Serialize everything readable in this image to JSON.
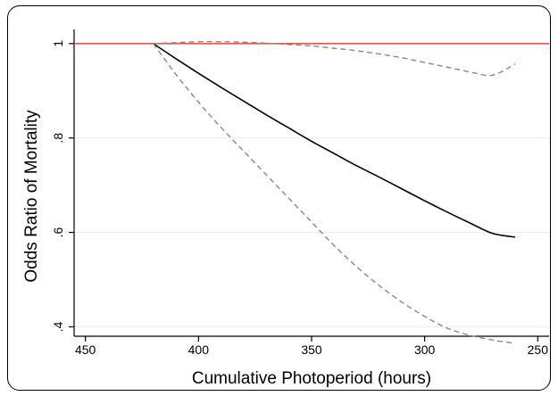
{
  "chart_data": {
    "type": "line",
    "title": "",
    "xlabel": "Cumulative Photoperiod (hours)",
    "ylabel": "Odds Ratio of Mortality",
    "xlim": [
      455,
      245
    ],
    "ylim": [
      0.38,
      1.03
    ],
    "x_reversed": true,
    "x_ticks": [
      450,
      400,
      350,
      300,
      250
    ],
    "x_tick_labels": [
      "450",
      "400",
      "350",
      "300",
      "250"
    ],
    "y_ticks": [
      0.4,
      0.6,
      0.8,
      1.0
    ],
    "y_tick_labels": [
      ".4",
      ".6",
      ".8",
      "1"
    ],
    "grid": true,
    "legend": "none",
    "reference_line": {
      "y": 1.0,
      "color": "#e8443a"
    },
    "series": [
      {
        "role": "estimate",
        "style": "solid",
        "color": "#000000",
        "x": [
          420,
          410,
          400,
          390,
          380,
          370,
          360,
          350,
          340,
          330,
          320,
          310,
          300,
          290,
          280,
          270,
          260
        ],
        "y": [
          1.0,
          0.968,
          0.937,
          0.907,
          0.878,
          0.849,
          0.821,
          0.793,
          0.767,
          0.741,
          0.717,
          0.692,
          0.667,
          0.643,
          0.62,
          0.598,
          0.59
        ]
      },
      {
        "role": "upper_ci",
        "style": "dashed",
        "color": "#888888",
        "x": [
          420,
          410,
          400,
          390,
          380,
          370,
          360,
          350,
          340,
          330,
          320,
          310,
          300,
          290,
          280,
          270,
          260
        ],
        "y": [
          1.0,
          1.002,
          1.004,
          1.004,
          1.003,
          1.001,
          0.998,
          0.995,
          0.99,
          0.985,
          0.978,
          0.97,
          0.96,
          0.95,
          0.94,
          0.933,
          0.957
        ]
      },
      {
        "role": "lower_ci",
        "style": "dashed",
        "color": "#888888",
        "x": [
          420,
          410,
          400,
          390,
          380,
          370,
          360,
          350,
          340,
          330,
          320,
          310,
          300,
          290,
          280,
          270,
          260
        ],
        "y": [
          1.0,
          0.935,
          0.876,
          0.822,
          0.772,
          0.722,
          0.672,
          0.622,
          0.572,
          0.527,
          0.487,
          0.452,
          0.422,
          0.397,
          0.382,
          0.372,
          0.365
        ]
      }
    ]
  }
}
